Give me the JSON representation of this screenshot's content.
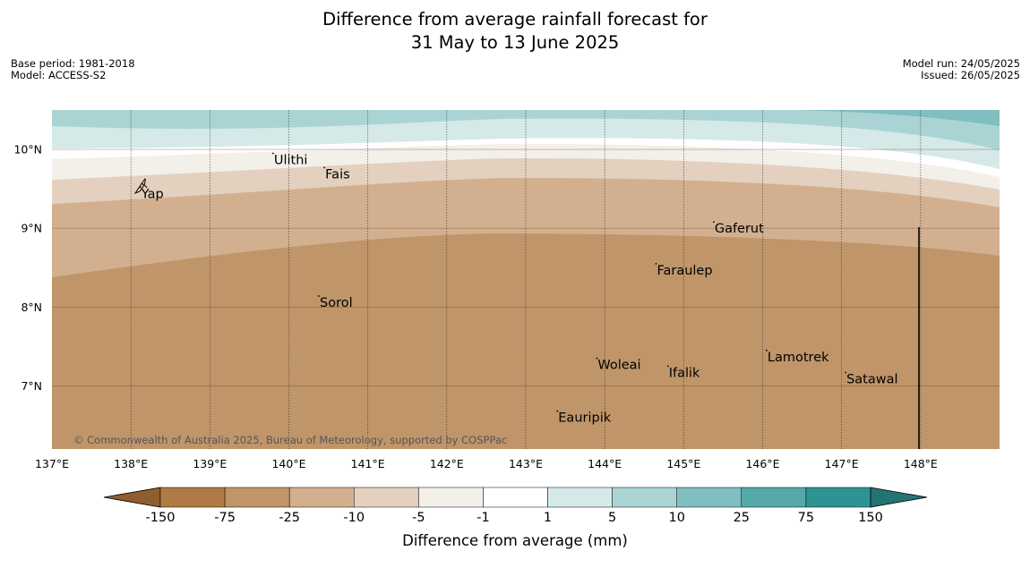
{
  "title": {
    "line1": "Difference from average rainfall forecast for",
    "line2": "31 May to 13 June 2025"
  },
  "meta_left": {
    "base_period": "Base period: 1981-2018",
    "model": "Model: ACCESS-S2"
  },
  "meta_right": {
    "model_run": "Model run: 24/05/2025",
    "issued": "Issued: 26/05/2025"
  },
  "copyright": "© Commonwealth of Australia 2025, Bureau of Meteorology, supported by COSPPac",
  "map": {
    "lon_range": [
      137,
      149
    ],
    "lat_range": [
      6.2,
      10.5
    ],
    "lon_ticks": [
      137,
      138,
      139,
      140,
      141,
      142,
      143,
      144,
      145,
      146,
      147,
      148
    ],
    "lon_tick_labels": [
      "137°E",
      "138°E",
      "139°E",
      "140°E",
      "141°E",
      "142°E",
      "143°E",
      "144°E",
      "145°E",
      "146°E",
      "147°E",
      "148°E"
    ],
    "lat_ticks": [
      7,
      8,
      9,
      10
    ],
    "lat_tick_labels": [
      "7°N",
      "8°N",
      "9°N",
      "10°N"
    ],
    "places": [
      {
        "name": "Ulithi",
        "lon": 139.8,
        "lat": 9.95
      },
      {
        "name": "Fais",
        "lon": 140.45,
        "lat": 9.77
      },
      {
        "name": "Yap",
        "lon": 138.12,
        "lat": 9.52
      },
      {
        "name": "Gaferut",
        "lon": 145.38,
        "lat": 9.08
      },
      {
        "name": "Faraulep",
        "lon": 144.65,
        "lat": 8.55
      },
      {
        "name": "Sorol",
        "lon": 140.38,
        "lat": 8.14
      },
      {
        "name": "Lamotrek",
        "lon": 146.05,
        "lat": 7.45
      },
      {
        "name": "Woleai",
        "lon": 143.9,
        "lat": 7.35
      },
      {
        "name": "Ifalik",
        "lon": 144.8,
        "lat": 7.25
      },
      {
        "name": "Satawal",
        "lon": 147.05,
        "lat": 7.17
      },
      {
        "name": "Eauripik",
        "lon": 143.4,
        "lat": 6.68
      }
    ]
  },
  "legend": {
    "title": "Difference from average (mm)",
    "tick_labels": [
      "-150",
      "-75",
      "-25",
      "-10",
      "-5",
      "-1",
      "1",
      "5",
      "10",
      "25",
      "75",
      "150"
    ],
    "colors": [
      "#8f5d31",
      "#b07a44",
      "#c09569",
      "#d2b08f",
      "#e3d0be",
      "#f3efe9",
      "#ffffff",
      "#d5e9e8",
      "#aad4d4",
      "#80bebf",
      "#56a9a9",
      "#2e9493",
      "#257373"
    ]
  }
}
